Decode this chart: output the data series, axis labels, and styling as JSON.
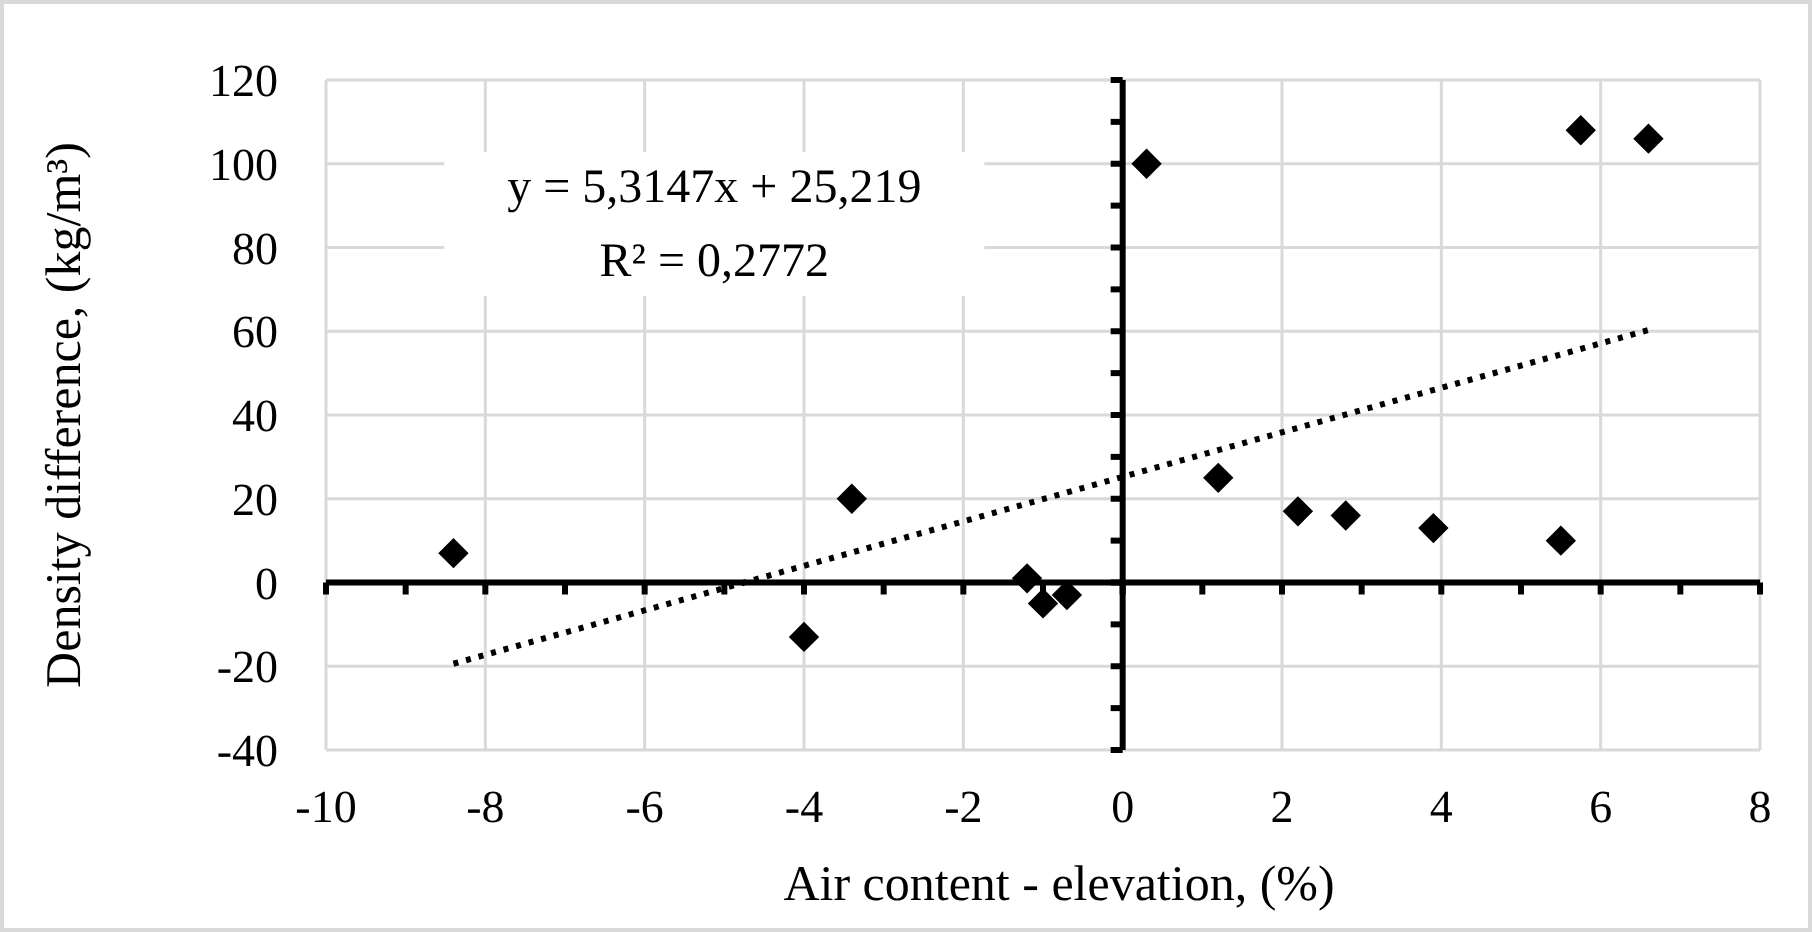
{
  "chart_data": {
    "type": "scatter",
    "xlabel": "Air content - elevation, (%)",
    "ylabel": "Density difference, (kg/m³)",
    "annotations": [
      "y = 5,3147x + 25,219",
      "R² = 0,2772"
    ],
    "xlim": [
      -10,
      8
    ],
    "ylim": [
      -40,
      120
    ],
    "xticks": [
      -10,
      {
        "value": -9,
        "label": null
      },
      -8,
      {
        "value": -7,
        "label": null
      },
      -6,
      {
        "value": -5,
        "label": null
      },
      -4,
      {
        "value": -3,
        "label": null
      },
      -2,
      {
        "value": -1,
        "label": null
      },
      0,
      {
        "value": 1,
        "label": null
      },
      2,
      {
        "value": 3,
        "label": null
      },
      4,
      {
        "value": 5,
        "label": null
      },
      6,
      {
        "value": 7,
        "label": null
      },
      8
    ],
    "yticks": [
      -40,
      {
        "value": -30,
        "label": null
      },
      -20,
      {
        "value": -10,
        "label": null
      },
      0,
      {
        "value": 10,
        "label": null
      },
      20,
      {
        "value": 30,
        "label": null
      },
      40,
      {
        "value": 50,
        "label": null
      },
      60,
      {
        "value": 70,
        "label": null
      },
      80,
      {
        "value": 90,
        "label": null
      },
      100,
      {
        "value": 110,
        "label": null
      },
      120
    ],
    "grid": true,
    "marker": "diamond",
    "series": [
      {
        "color": "#000000",
        "x": [
          -8.4,
          -4,
          -3.4,
          -1.2,
          -1.0,
          -0.7,
          0.3,
          1.2,
          2.2,
          2.8,
          3.9,
          5.5,
          5.75,
          6.6
        ],
        "values": [
          7,
          -13,
          20,
          1,
          -5,
          -3,
          100,
          25,
          17,
          16,
          13,
          10,
          108,
          106
        ]
      },
      {
        "type": "line",
        "color": "#000000",
        "marker": "none",
        "line_style": "dotted",
        "x": [
          -8.4,
          6.6
        ],
        "values": [
          -19.4,
          60.3
        ]
      }
    ]
  }
}
